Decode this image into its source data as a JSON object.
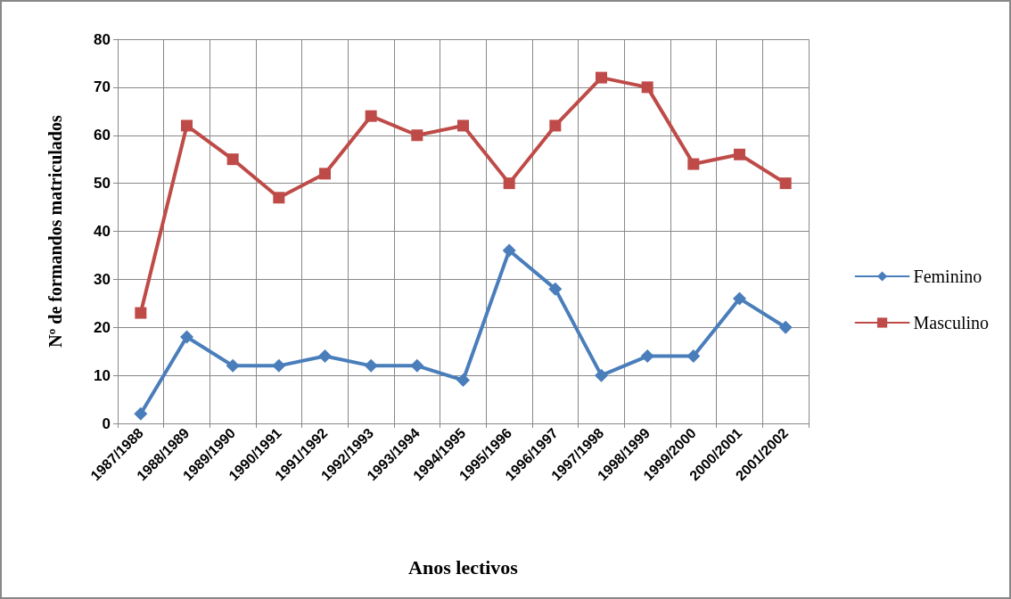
{
  "chart_data": {
    "type": "line",
    "xlabel": "Anos lectivos",
    "ylabel": "Nº de formandos matriculados",
    "categories": [
      "1987/1988",
      "1988/1989",
      "1989/1990",
      "1990/1991",
      "1991/1992",
      "1992/1993",
      "1993/1994",
      "1994/1995",
      "1995/1996",
      "1996/1997",
      "1997/1998",
      "1998/1999",
      "1999/2000",
      "2000/2001",
      "2001/2002"
    ],
    "series": [
      {
        "name": "Feminino",
        "color": "#4a7ebb",
        "marker": "diamond",
        "values": [
          2,
          18,
          12,
          12,
          14,
          12,
          12,
          9,
          36,
          28,
          10,
          14,
          14,
          26,
          20
        ]
      },
      {
        "name": "Masculino",
        "color": "#be4b48",
        "marker": "square",
        "values": [
          23,
          62,
          55,
          47,
          52,
          64,
          60,
          62,
          50,
          62,
          72,
          70,
          54,
          56,
          50
        ]
      }
    ],
    "ylim": [
      0,
      80
    ],
    "yticks": [
      0,
      10,
      20,
      30,
      40,
      50,
      60,
      70,
      80
    ],
    "grid": true,
    "legend": "right",
    "line_style": "solid"
  }
}
